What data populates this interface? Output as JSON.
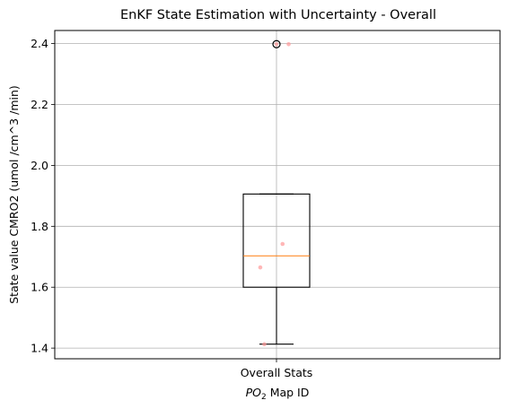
{
  "chart_data": {
    "type": "box",
    "title": "EnKF State Estimation with Uncertainty - Overall",
    "ylabel": "State value CMRO2 (umol /cm^3 /min)",
    "xlabel": {
      "prefix": "PO",
      "subscript": "2",
      "suffix": " Map ID"
    },
    "categories": [
      "Overall Stats"
    ],
    "ylim": [
      1.365,
      2.443
    ],
    "yticks": [
      1.4,
      1.6,
      1.8,
      2.0,
      2.2,
      2.4
    ],
    "ytick_labels": [
      "1.4",
      "1.6",
      "1.8",
      "2.0",
      "2.2",
      "2.4"
    ],
    "grid": true,
    "box": {
      "whisker_low": 1.413,
      "q1": 1.6,
      "median": 1.703,
      "q3": 1.906,
      "whisker_high": 1.906,
      "outliers": [
        2.398
      ]
    },
    "points": [
      {
        "x_offset": 0.0,
        "y": 2.398
      },
      {
        "x_offset": 0.06,
        "y": 2.398
      },
      {
        "x_offset": 0.03,
        "y": 1.742
      },
      {
        "x_offset": -0.08,
        "y": 1.665
      },
      {
        "x_offset": -0.06,
        "y": 1.413
      }
    ],
    "colors": {
      "box": "#000000",
      "median": "#ff7f0e",
      "grid": "#b0b0b0",
      "points": "#ff9999"
    }
  }
}
